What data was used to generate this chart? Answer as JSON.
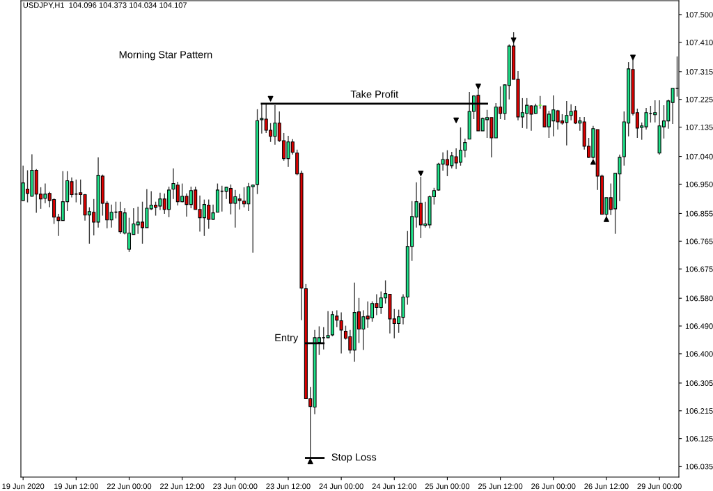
{
  "chart_data": {
    "type": "candlestick",
    "title": "USDJPY,H1  104.096 104.373 104.034 104.107",
    "annotations": [
      "Morning Star Pattern"
    ],
    "categories": [
      "19 Jun 2020",
      null,
      null,
      null,
      null,
      null,
      null,
      null,
      null,
      null,
      null,
      null,
      "19 Jun 12:00",
      null,
      null,
      null,
      null,
      null,
      null,
      null,
      null,
      null,
      null,
      null,
      "22 Jun 00:00",
      null,
      null,
      null,
      null,
      null,
      null,
      null,
      null,
      null,
      null,
      null,
      "22 Jun 12:00",
      null,
      null,
      null,
      null,
      null,
      null,
      null,
      null,
      null,
      null,
      null,
      "23 Jun 00:00",
      null,
      null,
      null,
      null,
      null,
      null,
      null,
      null,
      null,
      null,
      null,
      "23 Jun 12:00",
      null,
      null,
      null,
      null,
      null,
      null,
      null,
      null,
      null,
      null,
      null,
      "24 Jun 00:00",
      null,
      null,
      null,
      null,
      null,
      null,
      null,
      null,
      null,
      null,
      null,
      "24 Jun 12:00",
      null,
      null,
      null,
      null,
      null,
      null,
      null,
      null,
      null,
      null,
      null,
      "25 Jun 00:00",
      null,
      null,
      null,
      null,
      null,
      null,
      null,
      null,
      null,
      null,
      null,
      "25 Jun 12:00",
      null,
      null,
      null,
      null,
      null,
      null,
      null,
      null,
      null,
      null,
      null,
      "26 Jun 00:00",
      null,
      null,
      null,
      null,
      null,
      null,
      null,
      null,
      null,
      null,
      null,
      "26 Jun 12:00",
      null,
      null,
      null,
      null,
      null,
      null,
      null,
      null,
      null,
      null,
      null,
      "29 Jun 00:00",
      null,
      null,
      null,
      null
    ],
    "ohlc": [
      [
        106.897,
        107.01,
        106.897,
        106.954
      ],
      [
        106.934,
        106.995,
        106.891,
        106.92
      ],
      [
        106.911,
        107.047,
        106.909,
        106.995
      ],
      [
        106.995,
        106.999,
        106.857,
        106.918
      ],
      [
        106.918,
        106.94,
        106.87,
        106.902
      ],
      [
        106.904,
        106.952,
        106.888,
        106.918
      ],
      [
        106.92,
        106.925,
        106.875,
        106.897
      ],
      [
        106.9,
        106.904,
        106.821,
        106.843
      ],
      [
        106.843,
        106.854,
        106.782,
        106.832
      ],
      [
        106.832,
        106.992,
        106.832,
        106.893
      ],
      [
        106.893,
        106.992,
        106.863,
        106.961
      ],
      [
        106.958,
        106.972,
        106.907,
        106.916
      ],
      [
        106.918,
        106.965,
        106.891,
        106.918
      ],
      [
        106.922,
        106.965,
        106.884,
        106.916
      ],
      [
        106.916,
        106.918,
        106.832,
        106.85
      ],
      [
        106.85,
        106.875,
        106.757,
        106.861
      ],
      [
        106.859,
        106.902,
        106.784,
        106.827
      ],
      [
        106.827,
        107.037,
        106.809,
        106.979
      ],
      [
        106.976,
        106.981,
        106.848,
        106.888
      ],
      [
        106.888,
        106.895,
        106.807,
        106.834
      ],
      [
        106.834,
        106.884,
        106.809,
        106.859
      ],
      [
        106.859,
        106.893,
        106.839,
        106.859
      ],
      [
        106.861,
        106.893,
        106.789,
        106.796
      ],
      [
        106.791,
        106.872,
        106.787,
        106.857
      ],
      [
        106.739,
        106.841,
        106.73,
        106.791
      ],
      [
        106.787,
        106.872,
        106.787,
        106.821
      ],
      [
        106.818,
        106.877,
        106.789,
        106.827
      ],
      [
        106.827,
        106.893,
        106.757,
        106.809
      ],
      [
        106.809,
        106.934,
        106.809,
        106.872
      ],
      [
        106.87,
        106.927,
        106.866,
        106.882
      ],
      [
        106.882,
        106.893,
        106.848,
        106.875
      ],
      [
        106.879,
        106.922,
        106.866,
        106.902
      ],
      [
        106.902,
        106.92,
        106.854,
        106.868
      ],
      [
        106.868,
        106.942,
        106.843,
        106.931
      ],
      [
        106.934,
        107.001,
        106.902,
        106.952
      ],
      [
        106.947,
        106.958,
        106.881,
        106.893
      ],
      [
        106.893,
        106.952,
        106.891,
        106.911
      ],
      [
        106.911,
        106.92,
        106.845,
        106.884
      ],
      [
        106.884,
        106.942,
        106.872,
        106.929
      ],
      [
        106.931,
        106.942,
        106.868,
        106.868
      ],
      [
        106.868,
        106.913,
        106.796,
        106.841
      ],
      [
        106.841,
        106.9,
        106.782,
        106.884
      ],
      [
        106.882,
        106.9,
        106.805,
        106.836
      ],
      [
        106.836,
        106.884,
        106.834,
        106.857
      ],
      [
        106.859,
        106.952,
        106.859,
        106.931
      ],
      [
        106.927,
        106.945,
        106.861,
        106.927
      ],
      [
        106.927,
        106.942,
        106.902,
        106.94
      ],
      [
        106.936,
        106.949,
        106.852,
        106.888
      ],
      [
        106.888,
        106.931,
        106.809,
        106.909
      ],
      [
        106.902,
        106.918,
        106.868,
        106.897
      ],
      [
        106.895,
        106.94,
        106.875,
        106.886
      ],
      [
        106.886,
        106.954,
        106.863,
        106.942
      ],
      [
        106.942,
        106.949,
        106.728,
        106.947
      ],
      [
        106.949,
        107.193,
        106.918,
        107.156
      ],
      [
        107.159,
        107.211,
        107.114,
        107.163
      ],
      [
        107.161,
        107.211,
        107.116,
        107.125
      ],
      [
        107.125,
        107.148,
        107.087,
        107.105
      ],
      [
        107.105,
        107.206,
        107.078,
        107.148
      ],
      [
        107.148,
        107.186,
        107.087,
        107.091
      ],
      [
        107.091,
        107.116,
        107.026,
        107.033
      ],
      [
        107.033,
        107.107,
        107.006,
        107.087
      ],
      [
        107.087,
        107.096,
        107.046,
        107.053
      ],
      [
        107.051,
        107.062,
        106.979,
        106.983
      ],
      [
        106.985,
        106.994,
        106.509,
        106.613
      ],
      [
        106.611,
        106.626,
        106.254,
        106.254
      ],
      [
        106.254,
        106.292,
        106.06,
        106.229
      ],
      [
        106.227,
        106.477,
        106.204,
        106.452
      ],
      [
        106.437,
        106.489,
        106.396,
        106.452
      ],
      [
        106.452,
        106.486,
        106.414,
        106.452
      ],
      [
        106.452,
        106.538,
        106.45,
        106.459
      ],
      [
        106.461,
        106.538,
        106.457,
        106.527
      ],
      [
        106.522,
        106.541,
        106.486,
        106.509
      ],
      [
        106.507,
        106.534,
        106.401,
        106.477
      ],
      [
        106.473,
        106.491,
        106.446,
        106.45
      ],
      [
        106.455,
        106.477,
        106.401,
        106.412
      ],
      [
        106.412,
        106.631,
        106.374,
        106.534
      ],
      [
        106.536,
        106.581,
        106.435,
        106.48
      ],
      [
        106.48,
        106.541,
        106.412,
        106.52
      ],
      [
        106.522,
        106.57,
        106.484,
        106.513
      ],
      [
        106.516,
        106.57,
        106.504,
        106.563
      ],
      [
        106.563,
        106.593,
        106.525,
        106.55
      ],
      [
        106.55,
        106.602,
        106.529,
        106.581
      ],
      [
        106.581,
        106.638,
        106.563,
        106.595
      ],
      [
        106.593,
        106.593,
        106.466,
        106.513
      ],
      [
        106.513,
        106.545,
        106.45,
        106.498
      ],
      [
        106.498,
        106.543,
        106.468,
        106.52
      ],
      [
        106.518,
        106.593,
        106.495,
        106.584
      ],
      [
        106.584,
        106.798,
        106.559,
        106.748
      ],
      [
        106.748,
        106.895,
        106.701,
        106.845
      ],
      [
        106.843,
        106.956,
        106.809,
        106.893
      ],
      [
        106.888,
        106.974,
        106.775,
        106.818
      ],
      [
        106.816,
        106.893,
        106.809,
        106.821
      ],
      [
        106.818,
        106.913,
        106.807,
        106.909
      ],
      [
        106.909,
        106.938,
        106.884,
        106.929
      ],
      [
        106.931,
        107.019,
        106.929,
        107.015
      ],
      [
        107.015,
        107.053,
        106.994,
        107.03
      ],
      [
        107.03,
        107.06,
        106.976,
        107.012
      ],
      [
        107.01,
        107.055,
        107.001,
        107.042
      ],
      [
        107.039,
        107.066,
        106.999,
        107.019
      ],
      [
        107.021,
        107.134,
        107.01,
        107.06
      ],
      [
        107.06,
        107.098,
        107.037,
        107.085
      ],
      [
        107.096,
        107.249,
        107.096,
        107.186
      ],
      [
        107.186,
        107.238,
        107.161,
        107.236
      ],
      [
        107.238,
        107.263,
        107.123,
        107.123
      ],
      [
        107.123,
        107.166,
        107.123,
        107.163
      ],
      [
        107.159,
        107.191,
        107.1,
        107.166
      ],
      [
        107.166,
        107.166,
        107.037,
        107.1
      ],
      [
        107.1,
        107.213,
        107.1,
        107.2
      ],
      [
        107.2,
        107.267,
        107.161,
        107.179
      ],
      [
        107.179,
        107.274,
        107.159,
        107.272
      ],
      [
        107.27,
        107.403,
        107.225,
        107.398
      ],
      [
        107.398,
        107.443,
        107.29,
        107.29
      ],
      [
        107.29,
        107.317,
        107.157,
        107.168
      ],
      [
        107.168,
        107.229,
        107.132,
        107.182
      ],
      [
        107.179,
        107.229,
        107.13,
        107.206
      ],
      [
        107.204,
        107.206,
        107.123,
        107.177
      ],
      [
        107.179,
        107.211,
        107.177,
        107.204
      ],
      [
        107.206,
        107.236,
        107.195,
        107.206
      ],
      [
        107.204,
        107.204,
        107.136,
        107.136
      ],
      [
        107.136,
        107.188,
        107.1,
        107.177
      ],
      [
        107.155,
        107.238,
        107.105,
        107.191
      ],
      [
        107.188,
        107.191,
        107.127,
        107.152
      ],
      [
        107.155,
        107.177,
        107.143,
        107.148
      ],
      [
        107.15,
        107.22,
        107.076,
        107.173
      ],
      [
        107.173,
        107.209,
        107.157,
        107.186
      ],
      [
        107.188,
        107.204,
        107.145,
        107.148
      ],
      [
        107.148,
        107.168,
        107.123,
        107.155
      ],
      [
        107.152,
        107.168,
        107.062,
        107.073
      ],
      [
        107.073,
        107.1,
        107.035,
        107.037
      ],
      [
        107.037,
        107.139,
        107.033,
        107.13
      ],
      [
        107.127,
        107.127,
        106.931,
        106.976
      ],
      [
        106.976,
        106.981,
        106.852,
        106.852
      ],
      [
        106.852,
        106.906,
        106.83,
        106.906
      ],
      [
        106.906,
        106.952,
        106.85,
        106.868
      ],
      [
        106.87,
        106.985,
        106.789,
        106.985
      ],
      [
        106.983,
        107.046,
        106.895,
        107.037
      ],
      [
        107.039,
        107.186,
        107.01,
        107.152
      ],
      [
        107.148,
        107.346,
        107.105,
        107.324
      ],
      [
        107.322,
        107.353,
        107.173,
        107.179
      ],
      [
        107.182,
        107.195,
        107.1,
        107.132
      ],
      [
        107.134,
        107.15,
        107.094,
        107.139
      ],
      [
        107.136,
        107.197,
        107.127,
        107.182
      ],
      [
        107.179,
        107.204,
        107.15,
        107.179
      ],
      [
        107.175,
        107.222,
        107.15,
        107.182
      ],
      [
        107.051,
        107.222,
        107.046,
        107.139
      ],
      [
        107.136,
        107.206,
        107.098,
        107.155
      ],
      [
        107.155,
        107.224,
        107.13,
        107.22
      ],
      [
        107.215,
        107.261,
        107.145,
        107.261
      ],
      [
        107.261,
        107.364,
        107.234,
        107.261
      ]
    ],
    "colors": [
      "#1ee38a",
      "#e00000",
      "#1ee38a",
      "#e00000",
      "#e00000",
      "#1ee38a",
      "#e00000",
      "#e00000",
      "#e00000",
      "#1ee38a",
      "#1ee38a",
      "#e00000",
      "#000000",
      "#e00000",
      "#e00000",
      "#1ee38a",
      "#e00000",
      "#1ee38a",
      "#e00000",
      "#e00000",
      "#1ee38a",
      "#000000",
      "#e00000",
      "#1ee38a",
      "#1ee38a",
      "#1ee38a",
      "#1ee38a",
      "#e00000",
      "#1ee38a",
      "#1ee38a",
      "#e00000",
      "#1ee38a",
      "#e00000",
      "#1ee38a",
      "#1ee38a",
      "#e00000",
      "#1ee38a",
      "#e00000",
      "#1ee38a",
      "#e00000",
      "#e00000",
      "#1ee38a",
      "#e00000",
      "#1ee38a",
      "#1ee38a",
      "#000000",
      "#1ee38a",
      "#e00000",
      "#1ee38a",
      "#e00000",
      "#e00000",
      "#1ee38a",
      "#1ee38a",
      "#1ee38a",
      "#1ee38a",
      "#e00000",
      "#e00000",
      "#1ee38a",
      "#e00000",
      "#e00000",
      "#1ee38a",
      "#e00000",
      "#e00000",
      "#e00000",
      "#e00000",
      "#e00000",
      "#1ee38a",
      "#1ee38a",
      "#000000",
      "#1ee38a",
      "#1ee38a",
      "#e00000",
      "#e00000",
      "#e00000",
      "#e00000",
      "#1ee38a",
      "#e00000",
      "#1ee38a",
      "#e00000",
      "#1ee38a",
      "#e00000",
      "#1ee38a",
      "#1ee38a",
      "#e00000",
      "#e00000",
      "#1ee38a",
      "#1ee38a",
      "#1ee38a",
      "#1ee38a",
      "#1ee38a",
      "#e00000",
      "#1ee38a",
      "#1ee38a",
      "#1ee38a",
      "#1ee38a",
      "#1ee38a",
      "#e00000",
      "#1ee38a",
      "#e00000",
      "#1ee38a",
      "#1ee38a",
      "#1ee38a",
      "#1ee38a",
      "#e00000",
      "#1ee38a",
      "#1ee38a",
      "#e00000",
      "#1ee38a",
      "#e00000",
      "#1ee38a",
      "#1ee38a",
      "#e00000",
      "#e00000",
      "#1ee38a",
      "#1ee38a",
      "#e00000",
      "#1ee38a",
      "#66ff33",
      "#e00000",
      "#1ee38a",
      "#1ee38a",
      "#e00000",
      "#e00000",
      "#1ee38a",
      "#1ee38a",
      "#e00000",
      "#1ee38a",
      "#e00000",
      "#e00000",
      "#1ee38a",
      "#e00000",
      "#e00000",
      "#1ee38a",
      "#e00000",
      "#1ee38a",
      "#1ee38a",
      "#1ee38a",
      "#1ee38a",
      "#e00000",
      "#e00000",
      "#1ee38a",
      "#1ee38a",
      "#000000",
      "#1ee38a",
      "#1ee38a",
      "#1ee38a",
      "#1ee38a",
      "#1ee38a",
      "#000000"
    ],
    "series": [
      {
        "type": "line",
        "name": "Take Profit",
        "color": "#000000",
        "values": [
          null,
          null,
          null,
          null,
          null,
          null,
          null,
          null,
          null,
          null,
          null,
          null,
          null,
          null,
          null,
          null,
          null,
          null,
          null,
          null,
          null,
          null,
          null,
          null,
          null,
          null,
          null,
          null,
          null,
          null,
          null,
          null,
          null,
          null,
          null,
          null,
          null,
          null,
          null,
          null,
          null,
          null,
          null,
          null,
          null,
          null,
          null,
          null,
          null,
          null,
          null,
          null,
          null,
          null,
          107.211,
          107.211,
          107.211,
          107.211,
          107.211,
          107.211,
          107.211,
          107.211,
          107.211,
          107.211,
          107.211,
          107.211,
          107.211,
          107.211,
          107.211,
          107.211,
          107.211,
          107.211,
          107.211,
          107.211,
          107.211,
          107.211,
          107.211,
          107.211,
          107.211,
          107.211,
          107.211,
          107.211,
          107.211,
          107.211,
          107.211,
          107.211,
          107.211,
          107.211,
          107.211,
          107.211,
          107.211,
          107.211,
          107.211,
          107.211,
          107.211,
          107.211,
          107.211,
          107.211,
          107.211,
          107.211,
          107.211,
          107.211,
          107.211,
          107.211,
          107.211,
          107.211,
          null,
          null,
          null,
          null,
          null,
          null,
          null,
          null,
          null,
          null,
          null,
          null,
          null,
          null,
          null,
          null,
          null,
          null,
          null,
          null,
          null,
          null,
          null,
          null,
          null,
          null,
          null,
          null,
          null,
          null,
          null,
          null,
          null,
          null,
          null,
          null,
          null,
          null,
          null,
          null,
          null,
          null,
          null
        ]
      },
      {
        "type": "line",
        "name": "Entry",
        "color": "#000000",
        "values": [
          null,
          null,
          null,
          null,
          null,
          null,
          null,
          null,
          null,
          null,
          null,
          null,
          null,
          null,
          null,
          null,
          null,
          null,
          null,
          null,
          null,
          null,
          null,
          null,
          null,
          null,
          null,
          null,
          null,
          null,
          null,
          null,
          null,
          null,
          null,
          null,
          null,
          null,
          null,
          null,
          null,
          null,
          null,
          null,
          null,
          null,
          null,
          null,
          null,
          null,
          null,
          null,
          null,
          null,
          null,
          null,
          null,
          null,
          null,
          null,
          null,
          null,
          null,
          null,
          106.434,
          106.434,
          106.434,
          106.434,
          106.434,
          null,
          null,
          null,
          null,
          null,
          null,
          null,
          null,
          null,
          null,
          null,
          null,
          null,
          null,
          null,
          null,
          null,
          null,
          null,
          null,
          null,
          null,
          null,
          null,
          null,
          null,
          null,
          null,
          null,
          null,
          null,
          null,
          null,
          null,
          null,
          null,
          null,
          null,
          null,
          null,
          null,
          null,
          null,
          null,
          null,
          null,
          null,
          null,
          null,
          null,
          null,
          null,
          null,
          null,
          null,
          null,
          null,
          null,
          null,
          null,
          null,
          null,
          null,
          null,
          null,
          null,
          null,
          null,
          null,
          null,
          null,
          null,
          null,
          null,
          null,
          null,
          null,
          null,
          null,
          null
        ]
      },
      {
        "type": "line",
        "name": "Stop Loss",
        "color": "#000000",
        "values": [
          null,
          null,
          null,
          null,
          null,
          null,
          null,
          null,
          null,
          null,
          null,
          null,
          null,
          null,
          null,
          null,
          null,
          null,
          null,
          null,
          null,
          null,
          null,
          null,
          null,
          null,
          null,
          null,
          null,
          null,
          null,
          null,
          null,
          null,
          null,
          null,
          null,
          null,
          null,
          null,
          null,
          null,
          null,
          null,
          null,
          null,
          null,
          null,
          null,
          null,
          null,
          null,
          null,
          null,
          null,
          null,
          null,
          null,
          null,
          null,
          null,
          null,
          null,
          null,
          106.062,
          106.062,
          106.062,
          106.062,
          106.062,
          null,
          null,
          null,
          null,
          null,
          null,
          null,
          null,
          null,
          null,
          null,
          null,
          null,
          null,
          null,
          null,
          null,
          null,
          null,
          null,
          null,
          null,
          null,
          null,
          null,
          null,
          null,
          null,
          null,
          null,
          null,
          null,
          null,
          null,
          null,
          null,
          null,
          null,
          null,
          null,
          null,
          null,
          null,
          null,
          null,
          null,
          null,
          null,
          null,
          null,
          null,
          null,
          null,
          null,
          null,
          null,
          null,
          null,
          null,
          null,
          null,
          null,
          null,
          null,
          null,
          null,
          null,
          null,
          null,
          null,
          null,
          null,
          null,
          null,
          null,
          null,
          null,
          null,
          null,
          null
        ]
      },
      {
        "type": "scatter",
        "marker": "triangle",
        "color": "#000000",
        "values": [
          null,
          null,
          null,
          null,
          null,
          null,
          null,
          null,
          null,
          null,
          null,
          null,
          null,
          null,
          null,
          null,
          null,
          null,
          null,
          null,
          null,
          null,
          null,
          null,
          null,
          null,
          null,
          null,
          null,
          null,
          null,
          null,
          null,
          null,
          null,
          null,
          null,
          null,
          null,
          null,
          null,
          null,
          null,
          null,
          null,
          null,
          null,
          null,
          null,
          null,
          null,
          null,
          null,
          null,
          null,
          null,
          107.227,
          null,
          null,
          null,
          null,
          null,
          null,
          null,
          null,
          106.051,
          null,
          null,
          null,
          null,
          null,
          null,
          null,
          null,
          null,
          null,
          null,
          null,
          null,
          null,
          null,
          null,
          null,
          null,
          null,
          null,
          null,
          null,
          null,
          null,
          106.985,
          null,
          null,
          null,
          null,
          null,
          null,
          null,
          107.157,
          null,
          null,
          null,
          null,
          107.267,
          null,
          null,
          null,
          null,
          null,
          null,
          null,
          107.417,
          null,
          null,
          null,
          null,
          null,
          null,
          null,
          null,
          null,
          null,
          null,
          null,
          null,
          null,
          null,
          null,
          null,
          107.022,
          null,
          null,
          106.836,
          null,
          null,
          null,
          null,
          null,
          107.361,
          null,
          null,
          null,
          null,
          null,
          null,
          null,
          null,
          null,
          null
        ]
      }
    ],
    "ylim": [
      106.0,
      107.545
    ],
    "yticks": [
      {
        "value": 107.5,
        "label": "107.500"
      },
      {
        "value": 107.41,
        "label": "107.410"
      },
      107.315,
      107.225,
      107.135,
      {
        "value": 107.04,
        "label": "107.040"
      },
      {
        "value": 106.95,
        "label": "106.950"
      },
      106.855,
      106.765,
      106.675,
      {
        "value": 106.58,
        "label": "106.580"
      },
      {
        "value": 106.49,
        "label": "106.490"
      },
      {
        "value": 106.4,
        "label": "106.400"
      },
      106.305,
      106.215,
      106.125,
      106.035
    ]
  }
}
